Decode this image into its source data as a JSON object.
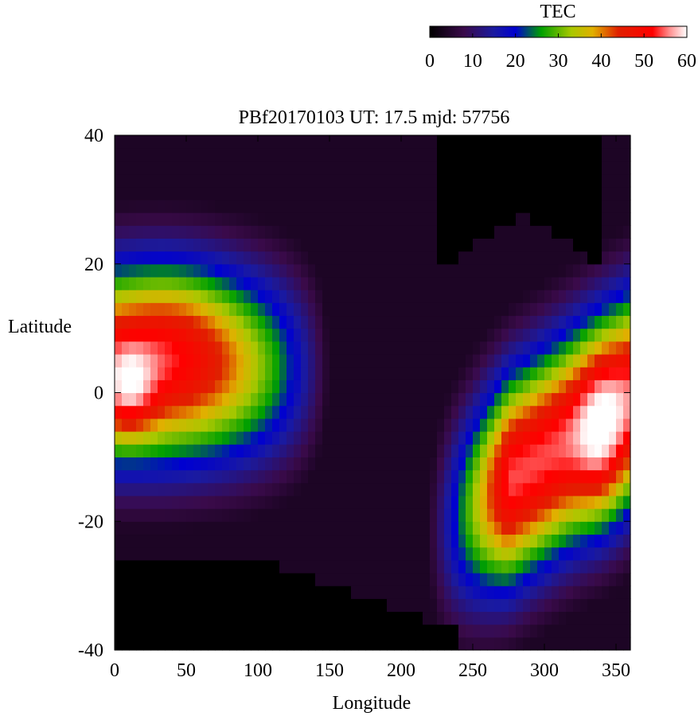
{
  "chart_data": {
    "type": "heatmap",
    "title": "PBf20170103  UT: 17.5  mjd: 57756",
    "xlabel": "Longitude",
    "ylabel": "Latitude",
    "xlim": [
      0,
      360
    ],
    "ylim": [
      -40,
      40
    ],
    "x_ticks": [
      "0",
      "50",
      "100",
      "150",
      "200",
      "250",
      "300",
      "350"
    ],
    "y_ticks": [
      "40",
      "20",
      "0",
      "-20",
      "-40"
    ],
    "x_tick_values": [
      0,
      50,
      100,
      150,
      200,
      250,
      300,
      350
    ],
    "y_tick_values": [
      40,
      20,
      0,
      -20,
      -40
    ],
    "colorbar": {
      "label": "TEC",
      "range": [
        0,
        60
      ],
      "ticks": [
        "0",
        "10",
        "20",
        "30",
        "40",
        "50",
        "60"
      ],
      "tick_values": [
        0,
        10,
        20,
        30,
        40,
        50,
        60
      ],
      "colormap": [
        {
          "v": 0,
          "color": "#000000"
        },
        {
          "v": 8,
          "color": "#3a0a4a"
        },
        {
          "v": 15,
          "color": "#1a1aa0"
        },
        {
          "v": 20,
          "color": "#0000d0"
        },
        {
          "v": 26,
          "color": "#00a000"
        },
        {
          "v": 33,
          "color": "#a8c800"
        },
        {
          "v": 38,
          "color": "#e0b000"
        },
        {
          "v": 44,
          "color": "#e02000"
        },
        {
          "v": 52,
          "color": "#ff0000"
        },
        {
          "v": 56,
          "color": "#ff9090"
        },
        {
          "v": 60,
          "color": "#ffffff"
        }
      ]
    },
    "grid": false,
    "data_description": "TEC field sampled on a 5-degree longitude x 2-degree latitude grid",
    "grid_step": {
      "lon": 5,
      "lat": 2
    },
    "features": [
      {
        "name": "western crest",
        "lon": 35,
        "lat": 8,
        "peak": 50
      },
      {
        "name": "western core",
        "lon": 10,
        "lat": 0,
        "peak": 60
      },
      {
        "name": "eastern crest",
        "lon": 335,
        "lat": -8,
        "peak": 60
      },
      {
        "name": "northern trough",
        "lon": 285,
        "lat": 34,
        "peak": 0
      },
      {
        "name": "southern trough",
        "lon": 100,
        "lat": -34,
        "peak": 0
      },
      {
        "name": "midfield depression",
        "lon": 190,
        "lat": 0,
        "peak": 8
      }
    ]
  }
}
